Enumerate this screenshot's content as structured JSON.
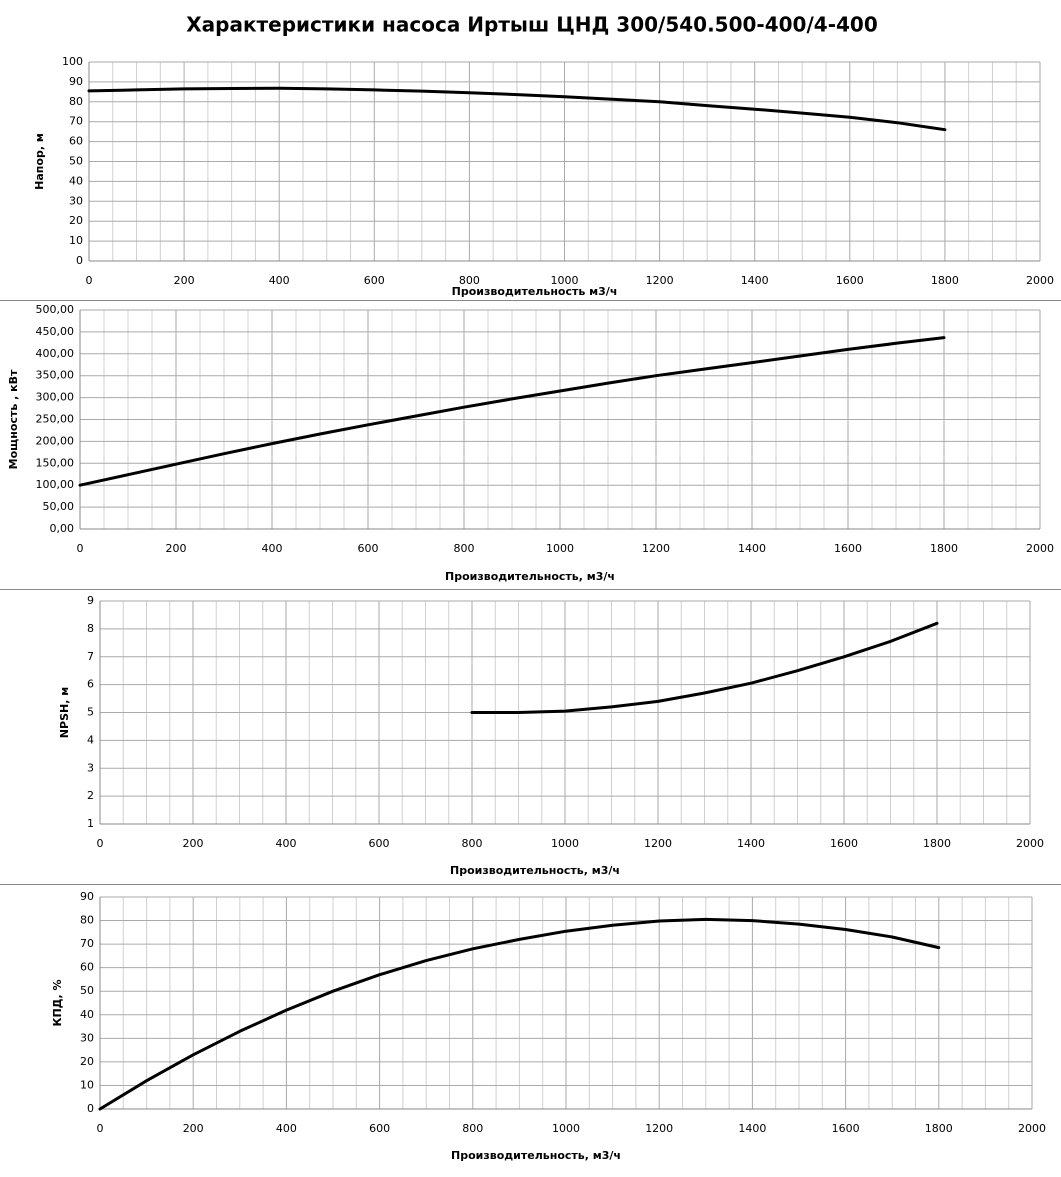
{
  "title": "Характеристики насоса Иртыш ЦНД 300/540.500-400/4-400",
  "chart_data": [
    {
      "type": "line",
      "xlabel": "Производительность м3/ч",
      "ylabel": "Напор, м",
      "color": "#000000",
      "grid": true,
      "x": [
        0,
        100,
        200,
        300,
        400,
        500,
        600,
        700,
        800,
        900,
        1000,
        1100,
        1200,
        1300,
        1400,
        1500,
        1600,
        1700,
        1800
      ],
      "values": [
        85.5,
        86,
        86.5,
        86.7,
        86.8,
        86.5,
        86,
        85.4,
        84.5,
        83.6,
        82.5,
        81.3,
        80,
        78.1,
        76.3,
        74.3,
        72.2,
        69.5,
        66
      ],
      "xlim": [
        0,
        2000
      ],
      "xticks": [
        0,
        200,
        400,
        600,
        800,
        1000,
        1200,
        1400,
        1600,
        1800,
        2000
      ],
      "ylim": [
        0,
        100
      ],
      "yticks": [
        0,
        10,
        20,
        30,
        40,
        50,
        60,
        70,
        80,
        90,
        100
      ]
    },
    {
      "type": "line",
      "xlabel": "Производительность, м3/ч",
      "ylabel": "Мощность , кВт",
      "color": "#000000",
      "grid": true,
      "x": [
        0,
        100,
        200,
        300,
        400,
        500,
        600,
        700,
        800,
        900,
        1000,
        1100,
        1200,
        1300,
        1400,
        1500,
        1600,
        1700,
        1800
      ],
      "values": [
        100,
        124,
        148,
        172,
        195,
        217,
        238,
        258,
        278,
        297,
        315,
        333,
        350,
        365,
        380,
        395,
        410,
        424,
        437
      ],
      "xlim": [
        0,
        2000
      ],
      "xticks": [
        0,
        200,
        400,
        600,
        800,
        1000,
        1200,
        1400,
        1600,
        1800,
        2000
      ],
      "ylim": [
        0,
        500
      ],
      "yticks": [
        {
          "value": 0,
          "label": "0,00"
        },
        {
          "value": 50,
          "label": "50,00"
        },
        {
          "value": 100,
          "label": "100,00"
        },
        {
          "value": 150,
          "label": "150,00"
        },
        {
          "value": 200,
          "label": "200,00"
        },
        {
          "value": 250,
          "label": "250,00"
        },
        {
          "value": 300,
          "label": "300,00"
        },
        {
          "value": 350,
          "label": "350,00"
        },
        {
          "value": 400,
          "label": "400,00"
        },
        {
          "value": 450,
          "label": "450,00"
        },
        {
          "value": 500,
          "label": "500,00"
        }
      ]
    },
    {
      "type": "line",
      "xlabel": "Производительность, м3/ч",
      "ylabel": "NPSH, м",
      "color": "#000000",
      "grid": true,
      "x": [
        800,
        900,
        1000,
        1100,
        1200,
        1300,
        1400,
        1500,
        1600,
        1700,
        1800
      ],
      "values": [
        5,
        5,
        5.05,
        5.2,
        5.4,
        5.7,
        6.05,
        6.5,
        7,
        7.55,
        8.2
      ],
      "xlim": [
        0,
        2000
      ],
      "xticks": [
        0,
        200,
        400,
        600,
        800,
        1000,
        1200,
        1400,
        1600,
        1800,
        2000
      ],
      "ylim": [
        1,
        9
      ],
      "yticks": [
        1,
        2,
        3,
        4,
        5,
        6,
        7,
        8,
        9
      ]
    },
    {
      "type": "line",
      "xlabel": "Производительность, м3/ч",
      "ylabel": "КПД, %",
      "color": "#000000",
      "grid": true,
      "x": [
        0,
        100,
        200,
        300,
        400,
        500,
        600,
        700,
        800,
        900,
        1000,
        1100,
        1200,
        1300,
        1400,
        1500,
        1600,
        1700,
        1800
      ],
      "values": [
        0,
        12,
        23,
        33,
        42,
        50,
        57,
        63,
        68,
        72,
        75.5,
        78,
        79.8,
        80.5,
        80,
        78.5,
        76.2,
        73,
        68.5
      ],
      "xlim": [
        0,
        2000
      ],
      "xticks": [
        0,
        200,
        400,
        600,
        800,
        1000,
        1200,
        1400,
        1600,
        1800,
        2000
      ],
      "ylim": [
        0,
        90
      ],
      "yticks": [
        0,
        10,
        20,
        30,
        40,
        50,
        60,
        70,
        80,
        90
      ]
    }
  ]
}
